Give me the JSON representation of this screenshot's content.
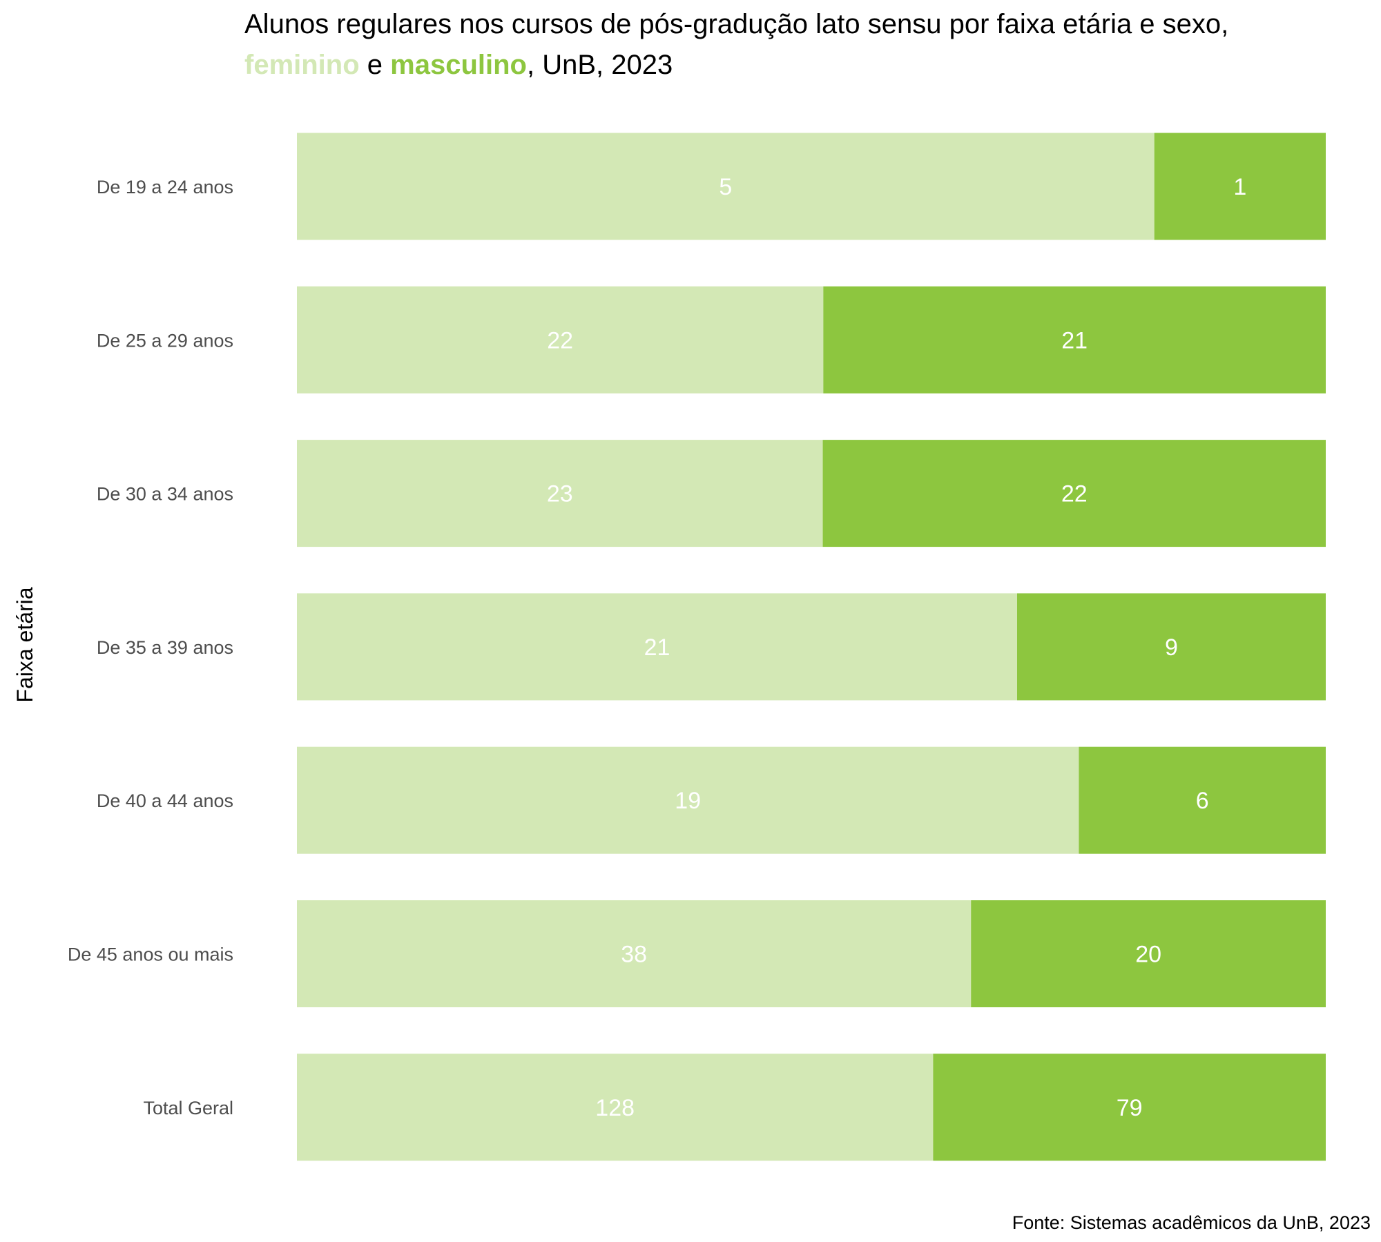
{
  "chart_data": {
    "type": "bar",
    "orientation": "horizontal",
    "stacking": "percent",
    "title_line1": "Alunos regulares nos cursos de pós-gradução lato sensu por faixa etária e sexo,",
    "title_line2_feminino": "feminino",
    "title_line2_sep": " e ",
    "title_line2_masculino": "masculino",
    "title_line2_suffix": ", UnB, 2023",
    "ylabel": "Faixa etária",
    "xlabel": "",
    "caption": "Fonte: Sistemas acadêmicos da UnB, 2023",
    "categories": [
      "De 19 a 24 anos",
      "De 25 a 29 anos",
      "De 30 a 34 anos",
      "De 35 a 39 anos",
      "De 40 a 44 anos",
      "De 45 anos ou mais",
      "Total Geral"
    ],
    "series": [
      {
        "name": "feminino",
        "color": "#d3e8b5",
        "values": [
          5,
          22,
          23,
          21,
          19,
          38,
          128
        ]
      },
      {
        "name": "masculino",
        "color": "#8dc63f",
        "values": [
          1,
          21,
          22,
          9,
          6,
          20,
          79
        ]
      }
    ],
    "legend": "none",
    "grid": false
  }
}
